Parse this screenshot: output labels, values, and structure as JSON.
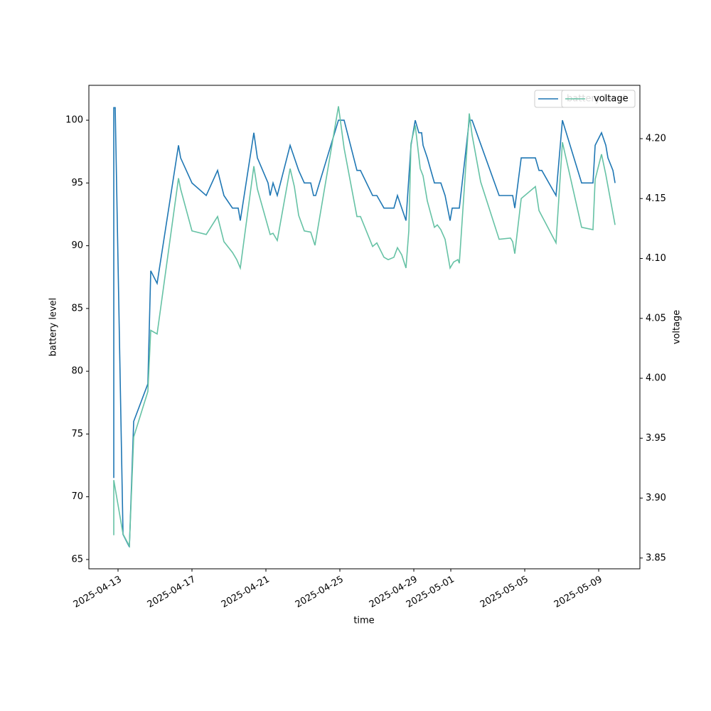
{
  "chart_data": {
    "type": "line",
    "xlabel": "time",
    "ylabel": "battery level",
    "y2label": "voltage",
    "xlim": [
      "2025-04-11 10:10",
      "2025-05-11 05:30"
    ],
    "xticks": [
      "2025-04-13",
      "2025-04-17",
      "2025-04-21",
      "2025-04-25",
      "2025-04-29",
      "2025-05-01",
      "2025-05-05",
      "2025-05-09"
    ],
    "ylim": [
      64.26,
      102.78
    ],
    "yticks": [
      65,
      70,
      75,
      80,
      85,
      90,
      95,
      100
    ],
    "y2lim": [
      3.841,
      4.2445
    ],
    "y2ticks": [
      3.85,
      {
        "value": 3.9,
        "label": "3.90"
      },
      3.95,
      {
        "value": 4.0,
        "label": "4.00"
      },
      4.05,
      {
        "value": 4.1,
        "label": "4.10"
      },
      4.15,
      {
        "value": 4.2,
        "label": "4.20"
      }
    ],
    "legend": "upper right",
    "series": [
      {
        "name": "battery level",
        "color": "#1f77b4",
        "x": [
          "2025-04-12 18:30",
          "2025-04-12 18:30",
          "2025-04-12 20:20",
          "2025-04-13 06:30",
          "2025-04-13 14:45",
          "2025-04-13 20:20",
          "2025-04-14 14:45",
          "2025-04-14 18:30",
          "2025-04-15 02:45",
          "2025-04-16 06:30",
          "2025-04-16 09:15",
          "2025-04-17 00:00",
          "2025-04-17 18:30",
          "2025-04-18 09:15",
          "2025-04-18 17:30",
          "2025-04-19 04:35",
          "2025-04-19 12:00",
          "2025-04-19 14:45",
          "2025-04-20 08:20",
          "2025-04-20 12:55",
          "2025-04-21 02:45",
          "2025-04-21 05:30",
          "2025-04-21 09:15",
          "2025-04-21 14:45",
          "2025-04-22 07:25",
          "2025-04-22 18:30",
          "2025-04-23 01:50",
          "2025-04-23 10:10",
          "2025-04-23 13:50",
          "2025-04-23 16:35",
          "2025-04-24 22:10",
          "2025-04-25 05:30",
          "2025-04-25 22:10",
          "2025-04-26 02:45",
          "2025-04-26 18:30",
          "2025-04-27 00:00",
          "2025-04-27 09:15",
          "2025-04-27 22:10",
          "2025-04-28 02:45",
          "2025-04-28 13:50",
          "2025-04-28 20:20",
          "2025-04-29 01:50",
          "2025-04-29 06:30",
          "2025-04-29 10:10",
          "2025-04-29 12:00",
          "2025-04-29 17:30",
          "2025-04-30 02:45",
          "2025-04-30 11:05",
          "2025-04-30 16:35",
          "2025-04-30 23:05",
          "2025-05-01 01:50",
          "2025-05-01 11:05",
          "2025-05-02 00:00",
          "2025-05-02 03:40",
          "2025-05-03 14:45",
          "2025-05-04 08:20",
          "2025-05-04 11:05",
          "2025-05-04 19:25",
          "2025-05-05 13:50",
          "2025-05-05 18:30",
          "2025-05-05 22:10",
          "2025-05-06 16:35",
          "2025-05-07 00:55",
          "2025-05-08 01:50",
          "2025-05-08 16:35",
          "2025-05-08 19:25",
          "2025-05-09 03:40",
          "2025-05-09 09:15",
          "2025-05-09 12:00",
          "2025-05-09 18:30",
          "2025-05-09 21:15"
        ],
        "values": [
          71.5,
          101,
          101,
          67,
          66,
          76,
          79,
          88,
          87,
          98,
          97,
          95,
          94,
          96,
          94,
          93,
          93,
          92,
          99,
          97,
          95,
          94,
          95,
          94,
          98,
          96,
          95,
          95,
          94,
          94,
          100,
          100,
          96,
          96,
          94,
          94,
          93,
          93,
          94,
          92,
          98,
          100,
          99,
          99,
          98,
          97,
          95,
          95,
          94,
          92,
          93,
          93,
          100,
          100,
          94,
          94,
          93,
          97,
          97,
          96,
          96,
          94,
          100,
          95,
          95,
          98,
          99,
          98,
          97,
          96,
          95
        ]
      },
      {
        "name": "voltage",
        "color": "#66c2a5",
        "axis": "y2",
        "x": [
          "2025-04-12 18:30",
          "2025-04-12 18:30",
          "2025-04-13 06:30",
          "2025-04-13 14:45",
          "2025-04-13 20:20",
          "2025-04-14 14:45",
          "2025-04-14 18:30",
          "2025-04-15 02:45",
          "2025-04-16 06:30",
          "2025-04-16 09:15",
          "2025-04-17 00:00",
          "2025-04-17 18:30",
          "2025-04-18 09:15",
          "2025-04-18 17:30",
          "2025-04-19 04:35",
          "2025-04-19 10:10",
          "2025-04-19 14:45",
          "2025-04-20 08:20",
          "2025-04-20 12:55",
          "2025-04-21 05:30",
          "2025-04-21 09:15",
          "2025-04-21 14:45",
          "2025-04-22 07:25",
          "2025-04-22 12:55",
          "2025-04-22 18:30",
          "2025-04-23 01:50",
          "2025-04-23 10:10",
          "2025-04-23 15:40",
          "2025-04-24 22:10",
          "2025-04-25 05:30",
          "2025-04-25 22:10",
          "2025-04-26 02:45",
          "2025-04-26 18:30",
          "2025-04-27 00:00",
          "2025-04-27 09:15",
          "2025-04-27 14:45",
          "2025-04-27 22:10",
          "2025-04-28 02:45",
          "2025-04-28 08:20",
          "2025-04-28 13:50",
          "2025-04-28 17:30",
          "2025-04-28 20:20",
          "2025-04-29 01:50",
          "2025-04-29 08:20",
          "2025-04-29 12:00",
          "2025-04-29 17:30",
          "2025-04-30 02:45",
          "2025-04-30 06:30",
          "2025-04-30 11:05",
          "2025-04-30 16:35",
          "2025-04-30 23:05",
          "2025-05-01 03:40",
          "2025-05-01 09:15",
          "2025-05-01 11:05",
          "2025-05-02 00:00",
          "2025-05-02 03:40",
          "2025-05-02 14:45",
          "2025-05-03 14:45",
          "2025-05-04 05:30",
          "2025-05-04 08:20",
          "2025-05-04 11:05",
          "2025-05-04 19:25",
          "2025-05-05 13:50",
          "2025-05-05 18:30",
          "2025-05-06 16:35",
          "2025-05-07 00:55",
          "2025-05-08 01:50",
          "2025-05-08 16:35",
          "2025-05-08 19:25",
          "2025-05-09 03:40",
          "2025-05-09 09:15",
          "2025-05-09 21:15"
        ],
        "values": [
          3.869,
          3.915,
          3.87,
          3.86,
          3.951,
          3.989,
          4.04,
          4.037,
          4.167,
          4.158,
          4.123,
          4.12,
          4.135,
          4.114,
          4.105,
          4.099,
          4.092,
          4.177,
          4.158,
          4.12,
          4.121,
          4.115,
          4.175,
          4.16,
          4.136,
          4.123,
          4.122,
          4.111,
          4.227,
          4.192,
          4.135,
          4.135,
          4.11,
          4.113,
          4.101,
          4.099,
          4.101,
          4.109,
          4.103,
          4.092,
          4.123,
          4.196,
          4.211,
          4.175,
          4.169,
          4.148,
          4.126,
          4.128,
          4.124,
          4.116,
          4.092,
          4.097,
          4.099,
          4.096,
          4.221,
          4.203,
          4.164,
          4.116,
          4.117,
          4.114,
          4.104,
          4.15,
          4.16,
          4.14,
          4.113,
          4.197,
          4.126,
          4.124,
          4.166,
          4.187,
          4.17,
          4.128
        ]
      }
    ]
  }
}
